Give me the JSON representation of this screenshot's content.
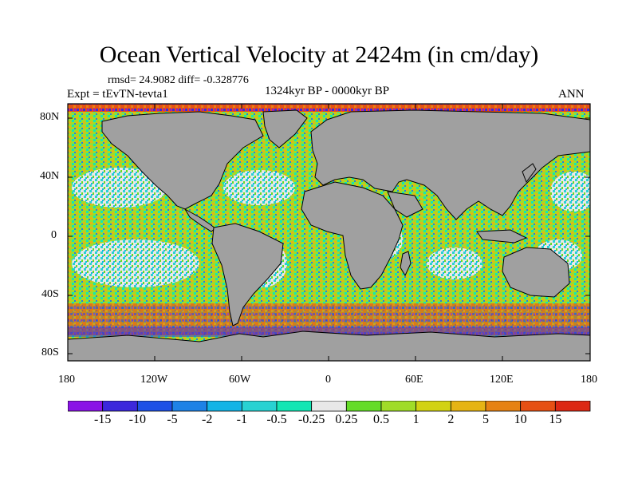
{
  "title": "Ocean Vertical Velocity at 2424m (in cm/day)",
  "stats_text": "rmsd= 24.9082  diff= -0.328776",
  "experiment": "Expt = tEvTN-tevta1",
  "period": "1324kyr BP - 0000kyr BP",
  "season": "ANN",
  "lat_ticks": [
    "80N",
    "40N",
    "0",
    "40S",
    "80S"
  ],
  "lon_ticks": [
    "180",
    "120W",
    "60W",
    "0",
    "60E",
    "120E",
    "180"
  ],
  "colorbar": {
    "labels": [
      "-15",
      "-10",
      "-5",
      "-2",
      "-1",
      "-0.5",
      "-0.25",
      "0.25",
      "0.5",
      "1",
      "2",
      "5",
      "10",
      "15"
    ],
    "colors": [
      "#8a14e6",
      "#3c28dc",
      "#1e50e6",
      "#1e82e6",
      "#14b4e6",
      "#28d2d2",
      "#14e6b4",
      "#e8e8e8",
      "#64dc28",
      "#a0dc28",
      "#d2d214",
      "#e6b414",
      "#e68214",
      "#e65014",
      "#dc2814"
    ]
  },
  "land_color": "#a0a0a0"
}
